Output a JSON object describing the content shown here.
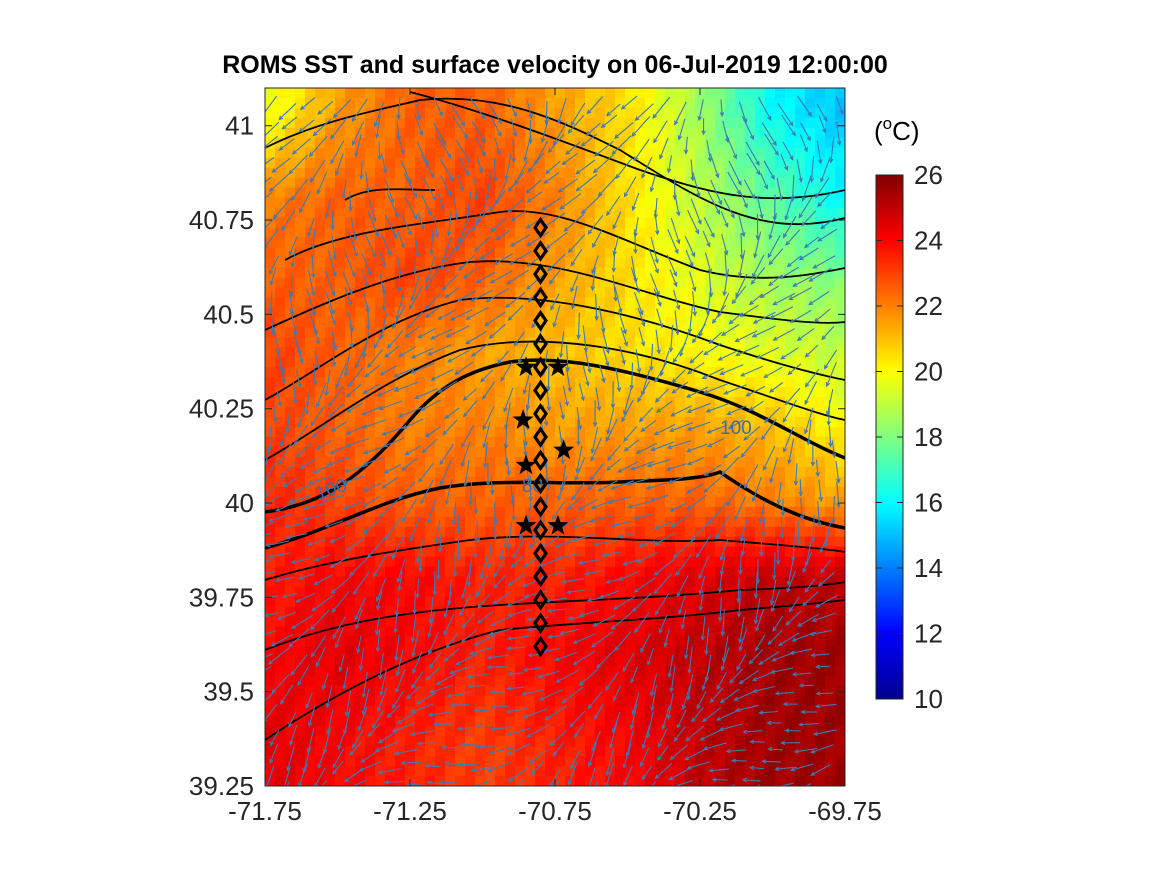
{
  "chart_data": [
    {
      "type": "heatmap",
      "title": "ROMS SST and surface velocity on 06-Jul-2019 12:00:00",
      "xlim": [
        -71.75,
        -69.75
      ],
      "ylim": [
        39.25,
        41.1
      ],
      "x_ticks": [
        "-71.75",
        "-71.25",
        "-70.75",
        "-70.25",
        "-69.75"
      ],
      "y_ticks": [
        "39.25",
        "39.5",
        "39.75",
        "40",
        "40.25",
        "40.5",
        "40.75",
        "41"
      ],
      "colormap": "jet",
      "sst_field_approx": [
        {
          "lat": 41.05,
          "values": [
            19.5,
            21.5,
            22.5,
            22.5,
            21.5,
            20.5,
            18.5,
            16,
            15
          ]
        },
        {
          "lat": 40.8,
          "values": [
            22,
            22.5,
            22.5,
            23,
            22,
            20.5,
            19,
            17.5,
            16
          ]
        },
        {
          "lat": 40.6,
          "values": [
            22.5,
            22.5,
            23,
            22.5,
            21.5,
            20.5,
            19.5,
            18.5,
            18
          ]
        },
        {
          "lat": 40.4,
          "values": [
            23,
            22.5,
            22,
            21.5,
            21,
            20.5,
            20,
            19.5,
            19
          ]
        },
        {
          "lat": 40.2,
          "values": [
            23,
            22.5,
            22,
            22,
            21.5,
            21.5,
            21.5,
            21,
            20
          ]
        },
        {
          "lat": 40.0,
          "values": [
            23.5,
            23,
            22.5,
            22.5,
            22.5,
            22.5,
            22.5,
            22,
            21.5
          ]
        },
        {
          "lat": 39.8,
          "values": [
            23.5,
            24,
            24,
            23.5,
            23.5,
            24,
            24.5,
            25,
            25
          ]
        },
        {
          "lat": 39.6,
          "values": [
            24,
            24.5,
            24,
            23.5,
            24,
            24.5,
            25,
            25.5,
            25.5
          ]
        },
        {
          "lat": 39.35,
          "values": [
            24.5,
            24,
            23.5,
            23,
            23.5,
            24,
            25,
            25.5,
            25.5
          ]
        }
      ],
      "sst_field_lon": [
        -71.75,
        -71.5,
        -71.25,
        -71.0,
        -70.75,
        -70.5,
        -70.25,
        -70.0,
        -69.75
      ],
      "contour_labels": [
        "100",
        "80",
        "100"
      ],
      "transect_diamonds": {
        "lon": -70.8,
        "lat_from": 39.62,
        "lat_to": 40.73,
        "count": 19
      },
      "stars": [
        {
          "lon": -70.85,
          "lat": 40.36
        },
        {
          "lon": -70.74,
          "lat": 40.36
        },
        {
          "lon": -70.86,
          "lat": 40.22
        },
        {
          "lon": -70.72,
          "lat": 40.14
        },
        {
          "lon": -70.85,
          "lat": 40.1
        },
        {
          "lon": -70.85,
          "lat": 39.94
        },
        {
          "lon": -70.74,
          "lat": 39.94
        }
      ],
      "colorbar": {
        "unit_label": "(oC)",
        "ticks": [
          "10",
          "12",
          "14",
          "16",
          "18",
          "20",
          "22",
          "24",
          "26"
        ],
        "range": [
          10,
          26
        ]
      },
      "colors": {
        "vector": "#3d7ab3",
        "contour": "#000000",
        "axis": "#262626"
      }
    }
  ]
}
